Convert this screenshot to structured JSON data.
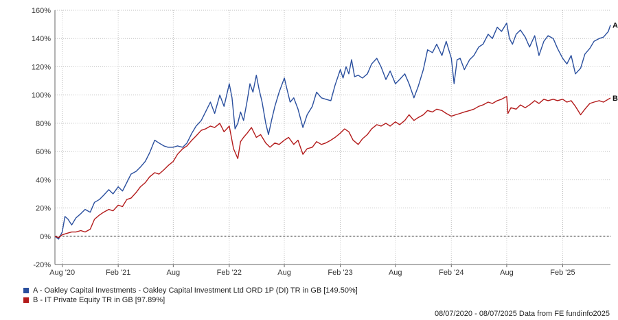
{
  "chart_data": {
    "type": "line",
    "ylim": [
      -20,
      160
    ],
    "y_ticks": [
      -20,
      0,
      20,
      40,
      60,
      80,
      100,
      120,
      140,
      160
    ],
    "y_tick_labels": [
      "-20%",
      "0%",
      "20%",
      "40%",
      "60%",
      "80%",
      "100%",
      "120%",
      "140%",
      "160%"
    ],
    "x_range": [
      "2020-07-08",
      "2025-07-08"
    ],
    "x_ticks": [
      {
        "date": "2020-08-01",
        "label": "Aug '20"
      },
      {
        "date": "2021-02-01",
        "label": "Feb '21"
      },
      {
        "date": "2021-08-01",
        "label": "Aug"
      },
      {
        "date": "2022-02-01",
        "label": "Feb '22"
      },
      {
        "date": "2022-08-01",
        "label": "Aug"
      },
      {
        "date": "2023-02-01",
        "label": "Feb '23"
      },
      {
        "date": "2023-08-01",
        "label": "Aug"
      },
      {
        "date": "2024-02-01",
        "label": "Feb '24"
      },
      {
        "date": "2024-08-01",
        "label": "Aug"
      },
      {
        "date": "2025-02-01",
        "label": "Feb '25"
      }
    ],
    "grid": true,
    "series": [
      {
        "name": "A - Oakley Capital Investments - Oakley Capital Investment Ltd ORD 1P (DI) TR in GB [149.50%]",
        "end_label": "A",
        "color": "#2a4f9e",
        "points": [
          [
            "2020-07-08",
            0
          ],
          [
            "2020-07-20",
            -2
          ],
          [
            "2020-08-01",
            3
          ],
          [
            "2020-08-10",
            14
          ],
          [
            "2020-08-20",
            12
          ],
          [
            "2020-09-01",
            8
          ],
          [
            "2020-09-15",
            13
          ],
          [
            "2020-10-01",
            16
          ],
          [
            "2020-10-15",
            19
          ],
          [
            "2020-11-01",
            17
          ],
          [
            "2020-11-15",
            24
          ],
          [
            "2020-12-01",
            26
          ],
          [
            "2020-12-15",
            29
          ],
          [
            "2021-01-01",
            33
          ],
          [
            "2021-01-15",
            30
          ],
          [
            "2021-02-01",
            35
          ],
          [
            "2021-02-15",
            32
          ],
          [
            "2021-03-01",
            38
          ],
          [
            "2021-03-15",
            44
          ],
          [
            "2021-04-01",
            46
          ],
          [
            "2021-04-15",
            49
          ],
          [
            "2021-05-01",
            53
          ],
          [
            "2021-05-15",
            59
          ],
          [
            "2021-06-01",
            68
          ],
          [
            "2021-06-15",
            66
          ],
          [
            "2021-07-01",
            64
          ],
          [
            "2021-07-15",
            63
          ],
          [
            "2021-08-01",
            63
          ],
          [
            "2021-08-15",
            64
          ],
          [
            "2021-09-01",
            63
          ],
          [
            "2021-09-15",
            66
          ],
          [
            "2021-10-01",
            73
          ],
          [
            "2021-10-15",
            78
          ],
          [
            "2021-11-01",
            82
          ],
          [
            "2021-11-15",
            88
          ],
          [
            "2021-12-01",
            95
          ],
          [
            "2021-12-15",
            87
          ],
          [
            "2022-01-01",
            100
          ],
          [
            "2022-01-15",
            92
          ],
          [
            "2022-02-01",
            108
          ],
          [
            "2022-02-10",
            98
          ],
          [
            "2022-02-20",
            76
          ],
          [
            "2022-03-01",
            80
          ],
          [
            "2022-03-10",
            88
          ],
          [
            "2022-03-20",
            82
          ],
          [
            "2022-04-01",
            96
          ],
          [
            "2022-04-10",
            108
          ],
          [
            "2022-04-20",
            102
          ],
          [
            "2022-05-01",
            114
          ],
          [
            "2022-05-10",
            104
          ],
          [
            "2022-05-20",
            95
          ],
          [
            "2022-06-01",
            80
          ],
          [
            "2022-06-10",
            72
          ],
          [
            "2022-06-20",
            82
          ],
          [
            "2022-07-01",
            92
          ],
          [
            "2022-07-15",
            102
          ],
          [
            "2022-08-01",
            112
          ],
          [
            "2022-08-10",
            104
          ],
          [
            "2022-08-20",
            95
          ],
          [
            "2022-09-01",
            98
          ],
          [
            "2022-09-15",
            90
          ],
          [
            "2022-10-01",
            77
          ],
          [
            "2022-10-15",
            86
          ],
          [
            "2022-11-01",
            92
          ],
          [
            "2022-11-15",
            102
          ],
          [
            "2022-12-01",
            98
          ],
          [
            "2022-12-15",
            97
          ],
          [
            "2023-01-01",
            96
          ],
          [
            "2023-01-15",
            107
          ],
          [
            "2023-02-01",
            118
          ],
          [
            "2023-02-10",
            112
          ],
          [
            "2023-02-20",
            120
          ],
          [
            "2023-03-01",
            115
          ],
          [
            "2023-03-10",
            125
          ],
          [
            "2023-03-20",
            113
          ],
          [
            "2023-04-01",
            114
          ],
          [
            "2023-04-15",
            112
          ],
          [
            "2023-05-01",
            115
          ],
          [
            "2023-05-15",
            122
          ],
          [
            "2023-06-01",
            126
          ],
          [
            "2023-06-15",
            120
          ],
          [
            "2023-07-01",
            111
          ],
          [
            "2023-07-15",
            117
          ],
          [
            "2023-08-01",
            108
          ],
          [
            "2023-08-15",
            111
          ],
          [
            "2023-09-01",
            115
          ],
          [
            "2023-09-15",
            108
          ],
          [
            "2023-10-01",
            98
          ],
          [
            "2023-10-15",
            106
          ],
          [
            "2023-11-01",
            118
          ],
          [
            "2023-11-15",
            132
          ],
          [
            "2023-12-01",
            130
          ],
          [
            "2023-12-15",
            136
          ],
          [
            "2024-01-01",
            128
          ],
          [
            "2024-01-15",
            138
          ],
          [
            "2024-02-01",
            126
          ],
          [
            "2024-02-10",
            108
          ],
          [
            "2024-02-20",
            125
          ],
          [
            "2024-03-01",
            126
          ],
          [
            "2024-03-15",
            118
          ],
          [
            "2024-04-01",
            125
          ],
          [
            "2024-04-15",
            128
          ],
          [
            "2024-05-01",
            134
          ],
          [
            "2024-05-15",
            136
          ],
          [
            "2024-06-01",
            143
          ],
          [
            "2024-06-15",
            140
          ],
          [
            "2024-07-01",
            148
          ],
          [
            "2024-07-15",
            145
          ],
          [
            "2024-08-01",
            151
          ],
          [
            "2024-08-10",
            140
          ],
          [
            "2024-08-20",
            136
          ],
          [
            "2024-09-01",
            143
          ],
          [
            "2024-09-15",
            146
          ],
          [
            "2024-10-01",
            141
          ],
          [
            "2024-10-15",
            134
          ],
          [
            "2024-11-01",
            142
          ],
          [
            "2024-11-15",
            128
          ],
          [
            "2024-12-01",
            138
          ],
          [
            "2024-12-15",
            142
          ],
          [
            "2025-01-01",
            140
          ],
          [
            "2025-01-15",
            133
          ],
          [
            "2025-02-01",
            126
          ],
          [
            "2025-02-15",
            122
          ],
          [
            "2025-03-01",
            128
          ],
          [
            "2025-03-15",
            115
          ],
          [
            "2025-04-01",
            119
          ],
          [
            "2025-04-15",
            129
          ],
          [
            "2025-05-01",
            133
          ],
          [
            "2025-05-15",
            138
          ],
          [
            "2025-06-01",
            140
          ],
          [
            "2025-06-15",
            141
          ],
          [
            "2025-07-01",
            145
          ],
          [
            "2025-07-08",
            149.5
          ]
        ]
      },
      {
        "name": "B - IT Private Equity TR in GB [97.89%]",
        "end_label": "B",
        "color": "#b31b1b",
        "points": [
          [
            "2020-07-08",
            0
          ],
          [
            "2020-07-20",
            -1
          ],
          [
            "2020-08-01",
            1
          ],
          [
            "2020-08-15",
            2
          ],
          [
            "2020-09-01",
            3
          ],
          [
            "2020-09-15",
            3
          ],
          [
            "2020-10-01",
            4
          ],
          [
            "2020-10-15",
            3
          ],
          [
            "2020-11-01",
            5
          ],
          [
            "2020-11-15",
            12
          ],
          [
            "2020-12-01",
            15
          ],
          [
            "2020-12-15",
            17
          ],
          [
            "2021-01-01",
            19
          ],
          [
            "2021-01-15",
            18
          ],
          [
            "2021-02-01",
            22
          ],
          [
            "2021-02-15",
            21
          ],
          [
            "2021-03-01",
            26
          ],
          [
            "2021-03-15",
            27
          ],
          [
            "2021-04-01",
            31
          ],
          [
            "2021-04-15",
            35
          ],
          [
            "2021-05-01",
            38
          ],
          [
            "2021-05-15",
            42
          ],
          [
            "2021-06-01",
            45
          ],
          [
            "2021-06-15",
            44
          ],
          [
            "2021-07-01",
            47
          ],
          [
            "2021-07-15",
            50
          ],
          [
            "2021-08-01",
            53
          ],
          [
            "2021-08-15",
            58
          ],
          [
            "2021-09-01",
            62
          ],
          [
            "2021-09-15",
            64
          ],
          [
            "2021-10-01",
            68
          ],
          [
            "2021-10-15",
            71
          ],
          [
            "2021-11-01",
            75
          ],
          [
            "2021-11-15",
            76
          ],
          [
            "2021-12-01",
            78
          ],
          [
            "2021-12-15",
            77
          ],
          [
            "2022-01-01",
            80
          ],
          [
            "2022-01-15",
            74
          ],
          [
            "2022-02-01",
            78
          ],
          [
            "2022-02-15",
            62
          ],
          [
            "2022-03-01",
            55
          ],
          [
            "2022-03-10",
            67
          ],
          [
            "2022-03-20",
            70
          ],
          [
            "2022-04-01",
            73
          ],
          [
            "2022-04-15",
            77
          ],
          [
            "2022-05-01",
            70
          ],
          [
            "2022-05-15",
            72
          ],
          [
            "2022-06-01",
            66
          ],
          [
            "2022-06-15",
            63
          ],
          [
            "2022-07-01",
            66
          ],
          [
            "2022-07-15",
            65
          ],
          [
            "2022-08-01",
            68
          ],
          [
            "2022-08-15",
            70
          ],
          [
            "2022-09-01",
            65
          ],
          [
            "2022-09-15",
            68
          ],
          [
            "2022-10-01",
            58
          ],
          [
            "2022-10-15",
            62
          ],
          [
            "2022-11-01",
            63
          ],
          [
            "2022-11-15",
            67
          ],
          [
            "2022-12-01",
            65
          ],
          [
            "2022-12-15",
            66
          ],
          [
            "2023-01-01",
            68
          ],
          [
            "2023-01-15",
            70
          ],
          [
            "2023-02-01",
            73
          ],
          [
            "2023-02-15",
            76
          ],
          [
            "2023-03-01",
            74
          ],
          [
            "2023-03-15",
            68
          ],
          [
            "2023-04-01",
            65
          ],
          [
            "2023-04-15",
            69
          ],
          [
            "2023-05-01",
            72
          ],
          [
            "2023-05-15",
            76
          ],
          [
            "2023-06-01",
            79
          ],
          [
            "2023-06-15",
            78
          ],
          [
            "2023-07-01",
            80
          ],
          [
            "2023-07-15",
            78
          ],
          [
            "2023-08-01",
            81
          ],
          [
            "2023-08-15",
            79
          ],
          [
            "2023-09-01",
            82
          ],
          [
            "2023-09-15",
            86
          ],
          [
            "2023-10-01",
            82
          ],
          [
            "2023-10-15",
            84
          ],
          [
            "2023-11-01",
            86
          ],
          [
            "2023-11-15",
            89
          ],
          [
            "2023-12-01",
            88
          ],
          [
            "2023-12-15",
            90
          ],
          [
            "2024-01-01",
            89
          ],
          [
            "2024-01-15",
            87
          ],
          [
            "2024-02-01",
            85
          ],
          [
            "2024-02-15",
            86
          ],
          [
            "2024-03-01",
            87
          ],
          [
            "2024-03-15",
            88
          ],
          [
            "2024-04-01",
            89
          ],
          [
            "2024-04-15",
            90
          ],
          [
            "2024-05-01",
            92
          ],
          [
            "2024-05-15",
            93
          ],
          [
            "2024-06-01",
            95
          ],
          [
            "2024-06-15",
            94
          ],
          [
            "2024-07-01",
            96
          ],
          [
            "2024-07-15",
            97
          ],
          [
            "2024-08-01",
            99
          ],
          [
            "2024-08-05",
            87
          ],
          [
            "2024-08-15",
            91
          ],
          [
            "2024-09-01",
            90
          ],
          [
            "2024-09-15",
            93
          ],
          [
            "2024-10-01",
            91
          ],
          [
            "2024-10-15",
            93
          ],
          [
            "2024-11-01",
            96
          ],
          [
            "2024-11-15",
            94
          ],
          [
            "2024-12-01",
            97
          ],
          [
            "2024-12-15",
            96
          ],
          [
            "2025-01-01",
            97
          ],
          [
            "2025-01-15",
            96
          ],
          [
            "2025-02-01",
            97
          ],
          [
            "2025-02-15",
            95
          ],
          [
            "2025-03-01",
            96
          ],
          [
            "2025-03-15",
            92
          ],
          [
            "2025-04-01",
            86
          ],
          [
            "2025-04-15",
            90
          ],
          [
            "2025-05-01",
            94
          ],
          [
            "2025-05-15",
            95
          ],
          [
            "2025-06-01",
            96
          ],
          [
            "2025-06-15",
            95
          ],
          [
            "2025-07-01",
            97
          ],
          [
            "2025-07-08",
            97.89
          ]
        ]
      }
    ]
  },
  "legend": {
    "a_label": "A - Oakley Capital Investments - Oakley Capital Investment Ltd ORD 1P (DI) TR in GB [149.50%]",
    "b_label": "B - IT Private Equity TR in GB [97.89%]"
  },
  "footer": "08/07/2020 - 08/07/2025 Data from FE fundinfo2025"
}
